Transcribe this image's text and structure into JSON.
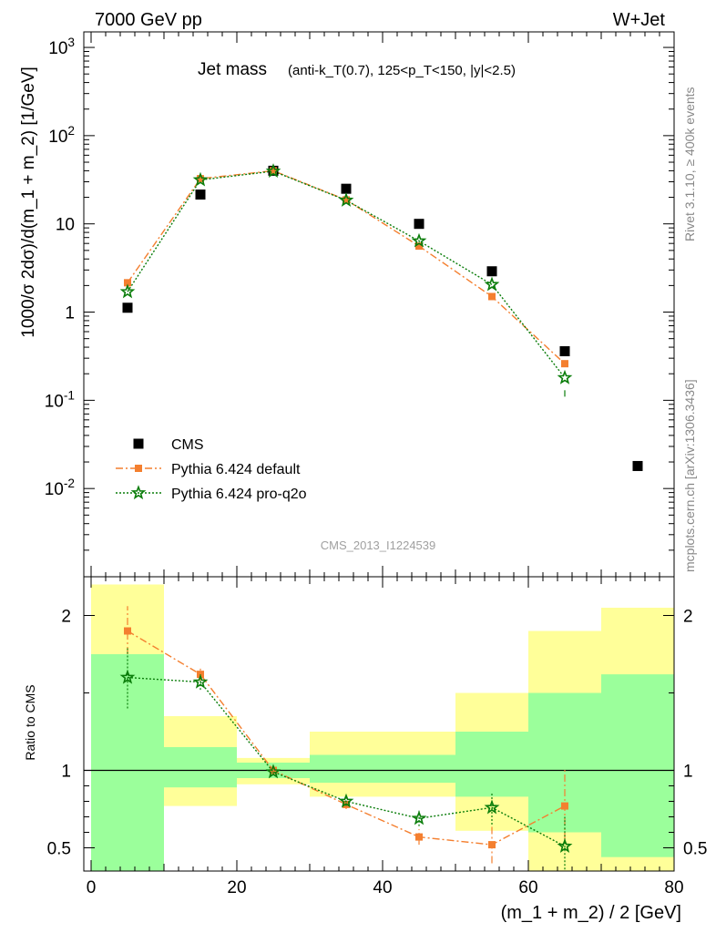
{
  "header": {
    "left": "7000 GeV pp",
    "right": "W+Jet"
  },
  "plot_title": {
    "main": "Jet mass",
    "sub": "(anti-k_T(0.7), 125<p_T<150, |y|<2.5)"
  },
  "side_labels": {
    "rivet": "Rivet 3.1.10, ≥ 400k events",
    "mcplots": "mcplots.cern.ch [arXiv:1306.3436]"
  },
  "watermark": "CMS_2013_I1224539",
  "colors": {
    "data": "#000000",
    "default": "#f47f2f",
    "proq2o": "#0a7d0a",
    "band_green": "#9bff9b",
    "band_yellow": "#ffff99"
  },
  "chart_data": [
    {
      "type": "scatter",
      "panel": "main",
      "ylabel": "1000/σ 2dσ)/d(m_1 + m_2) [1/GeV]",
      "yscale": "log",
      "ylim": [
        0.001,
        1500
      ],
      "xlim": [
        -1,
        80
      ],
      "y_ticks": [
        "10^{-2}",
        "10^{-1}",
        "1",
        "10",
        "10^{2}",
        "10^{3}"
      ],
      "legend_position": "bottom-left",
      "series": [
        {
          "name": "CMS",
          "style": "black-square",
          "x": [
            5,
            15,
            25,
            35,
            45,
            55,
            65,
            75
          ],
          "y": [
            1.12,
            21.5,
            40.0,
            25.0,
            10.0,
            2.9,
            0.36,
            0.018
          ]
        },
        {
          "name": "Pythia 6.424 default",
          "style": "orange-dashdot-square",
          "x": [
            5,
            15,
            25,
            35,
            45,
            55,
            65
          ],
          "y": [
            2.15,
            32.5,
            40.0,
            18.7,
            5.6,
            1.5,
            0.26
          ]
        },
        {
          "name": "Pythia 6.424 pro-q2o",
          "style": "green-dotted-star",
          "x": [
            5,
            15,
            25,
            35,
            45,
            55,
            65
          ],
          "y": [
            1.7,
            31.5,
            39.5,
            18.5,
            6.4,
            2.05,
            0.18
          ]
        }
      ]
    },
    {
      "type": "scatter",
      "panel": "ratio",
      "xlabel": "(m_1 + m_2) / 2 [GeV]",
      "ylabel": "Ratio to CMS",
      "ylim": [
        0.35,
        2.25
      ],
      "xlim": [
        -1,
        80
      ],
      "x_ticks": [
        0,
        20,
        40,
        60,
        80
      ],
      "y_ticks": [
        0.5,
        1,
        2
      ],
      "reference_line": 1,
      "bands": [
        {
          "x0": 0,
          "x1": 10,
          "green": [
            0.35,
            1.75
          ],
          "yellow": [
            0.35,
            2.2
          ]
        },
        {
          "x0": 10,
          "x1": 20,
          "green": [
            0.89,
            1.15
          ],
          "yellow": [
            0.77,
            1.35
          ]
        },
        {
          "x0": 20,
          "x1": 30,
          "green": [
            0.95,
            1.05
          ],
          "yellow": [
            0.91,
            1.08
          ]
        },
        {
          "x0": 30,
          "x1": 50,
          "green": [
            0.92,
            1.1
          ],
          "yellow": [
            0.83,
            1.25
          ]
        },
        {
          "x0": 50,
          "x1": 60,
          "green": [
            0.83,
            1.25
          ],
          "yellow": [
            0.61,
            1.5
          ]
        },
        {
          "x0": 60,
          "x1": 70,
          "green": [
            0.6,
            1.5
          ],
          "yellow": [
            0.35,
            1.9
          ]
        },
        {
          "x0": 70,
          "x1": 80,
          "green": [
            0.44,
            1.62
          ],
          "yellow": [
            0.35,
            2.05
          ]
        }
      ],
      "series": [
        {
          "name": "Pythia 6.424 default",
          "style": "orange-dashdot-square",
          "x": [
            5,
            15,
            25,
            35,
            45,
            55,
            65
          ],
          "y": [
            1.9,
            1.62,
            1.0,
            0.78,
            0.57,
            0.52,
            0.77
          ],
          "err": [
            [
              1.75,
              2.06
            ],
            [
              1.58,
              1.66
            ],
            [
              0.99,
              1.01
            ],
            [
              0.75,
              0.81
            ],
            [
              0.52,
              0.62
            ],
            [
              0.4,
              0.65
            ],
            [
              0.55,
              1.02
            ]
          ]
        },
        {
          "name": "Pythia 6.424 pro-q2o",
          "style": "green-dotted-star",
          "x": [
            5,
            15,
            25,
            35,
            45,
            55,
            65
          ],
          "y": [
            1.6,
            1.57,
            0.99,
            0.8,
            0.69,
            0.76,
            0.51
          ],
          "err": [
            [
              1.4,
              1.8
            ],
            [
              1.52,
              1.62
            ],
            [
              0.98,
              1.0
            ],
            [
              0.77,
              0.83
            ],
            [
              0.64,
              0.74
            ],
            [
              0.65,
              0.85
            ],
            [
              0.36,
              0.7
            ]
          ]
        }
      ]
    }
  ]
}
